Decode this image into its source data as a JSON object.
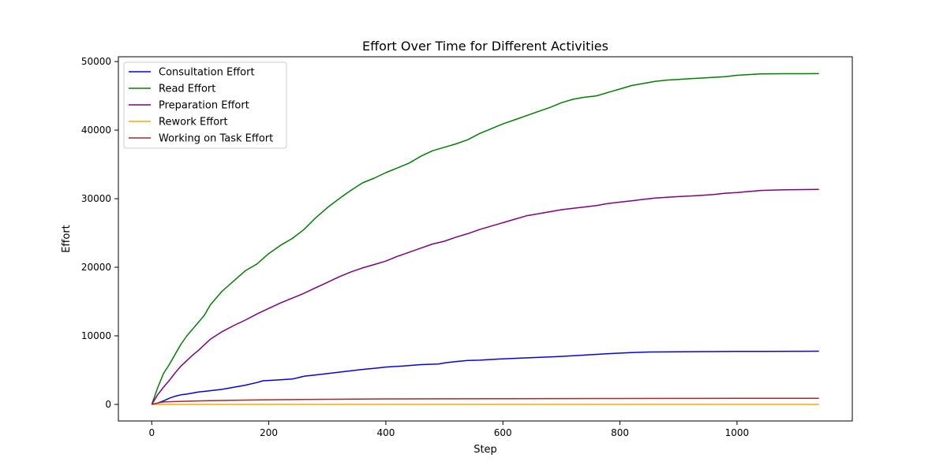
{
  "chart_data": {
    "type": "line",
    "title": "Effort Over Time for Different Activities",
    "xlabel": "Step",
    "ylabel": "Effort",
    "xlim": [
      -57,
      1197
    ],
    "ylim": [
      -2415,
      50700
    ],
    "xticks": [
      0,
      200,
      400,
      600,
      800,
      1000
    ],
    "yticks": [
      0,
      10000,
      20000,
      30000,
      40000,
      50000
    ],
    "grid": false,
    "legend_position": "top-left",
    "series": [
      {
        "name": "Consultation Effort",
        "color": "#0000ff",
        "x": [
          0,
          10,
          20,
          30,
          40,
          50,
          60,
          80,
          100,
          120,
          140,
          160,
          180,
          190,
          200,
          220,
          240,
          250,
          260,
          280,
          300,
          320,
          340,
          360,
          380,
          400,
          430,
          460,
          490,
          500,
          520,
          540,
          560,
          580,
          600,
          630,
          660,
          700,
          740,
          780,
          820,
          850,
          900,
          950,
          1000,
          1050,
          1100,
          1140
        ],
        "y": [
          0,
          200,
          500,
          900,
          1200,
          1400,
          1500,
          1800,
          2000,
          2200,
          2500,
          2800,
          3200,
          3450,
          3500,
          3600,
          3700,
          3900,
          4100,
          4300,
          4500,
          4700,
          4900,
          5100,
          5250,
          5450,
          5600,
          5800,
          5900,
          6050,
          6250,
          6400,
          6450,
          6550,
          6650,
          6750,
          6850,
          7000,
          7200,
          7400,
          7550,
          7650,
          7680,
          7700,
          7720,
          7740,
          7750,
          7760
        ]
      },
      {
        "name": "Read Effort",
        "color": "#008000",
        "x": [
          0,
          5,
          10,
          20,
          30,
          40,
          50,
          60,
          70,
          80,
          90,
          100,
          120,
          140,
          160,
          180,
          200,
          220,
          240,
          260,
          280,
          300,
          320,
          340,
          360,
          380,
          400,
          420,
          440,
          460,
          480,
          500,
          520,
          540,
          560,
          580,
          600,
          620,
          640,
          660,
          680,
          700,
          720,
          740,
          760,
          780,
          800,
          820,
          840,
          860,
          880,
          900,
          920,
          940,
          960,
          980,
          1000,
          1040,
          1080,
          1140
        ],
        "y": [
          0,
          1200,
          2400,
          4500,
          5800,
          7300,
          8800,
          10000,
          11000,
          12000,
          13000,
          14500,
          16500,
          18000,
          19500,
          20500,
          22000,
          23200,
          24200,
          25500,
          27200,
          28700,
          30000,
          31200,
          32300,
          33000,
          33800,
          34500,
          35200,
          36200,
          37000,
          37500,
          38000,
          38600,
          39500,
          40200,
          40900,
          41500,
          42100,
          42700,
          43300,
          44000,
          44500,
          44800,
          45000,
          45500,
          46000,
          46500,
          46800,
          47100,
          47300,
          47400,
          47500,
          47600,
          47700,
          47800,
          48000,
          48200,
          48230,
          48240
        ]
      },
      {
        "name": "Preparation Effort",
        "color": "#800080",
        "x": [
          0,
          10,
          20,
          30,
          40,
          50,
          60,
          70,
          80,
          90,
          100,
          120,
          140,
          160,
          180,
          200,
          220,
          240,
          260,
          280,
          300,
          320,
          340,
          360,
          380,
          400,
          420,
          440,
          460,
          480,
          500,
          520,
          540,
          560,
          580,
          600,
          620,
          640,
          660,
          680,
          700,
          720,
          740,
          760,
          780,
          800,
          820,
          840,
          860,
          880,
          900,
          920,
          940,
          960,
          980,
          1000,
          1040,
          1080,
          1140
        ],
        "y": [
          0,
          1400,
          2500,
          3500,
          4600,
          5600,
          6400,
          7200,
          7900,
          8700,
          9500,
          10600,
          11500,
          12300,
          13200,
          14000,
          14800,
          15500,
          16200,
          17000,
          17800,
          18600,
          19300,
          19900,
          20400,
          20900,
          21600,
          22200,
          22800,
          23400,
          23800,
          24400,
          24900,
          25500,
          26000,
          26500,
          27000,
          27500,
          27800,
          28100,
          28400,
          28600,
          28800,
          29000,
          29300,
          29500,
          29700,
          29900,
          30100,
          30200,
          30300,
          30400,
          30500,
          30600,
          30800,
          30900,
          31200,
          31300,
          31350
        ]
      },
      {
        "name": "Rework Effort",
        "color": "#ffa500",
        "x": [
          0,
          200,
          400,
          600,
          800,
          1000,
          1140
        ],
        "y": [
          0,
          0,
          0,
          0,
          0,
          0,
          0
        ]
      },
      {
        "name": "Working on Task Effort",
        "color": "#a52a2a",
        "x": [
          0,
          10,
          20,
          50,
          100,
          150,
          200,
          300,
          400,
          500,
          600,
          700,
          800,
          900,
          1000,
          1100,
          1140
        ],
        "y": [
          0,
          200,
          350,
          450,
          550,
          620,
          680,
          750,
          800,
          820,
          840,
          850,
          860,
          870,
          890,
          900,
          900
        ]
      }
    ]
  }
}
